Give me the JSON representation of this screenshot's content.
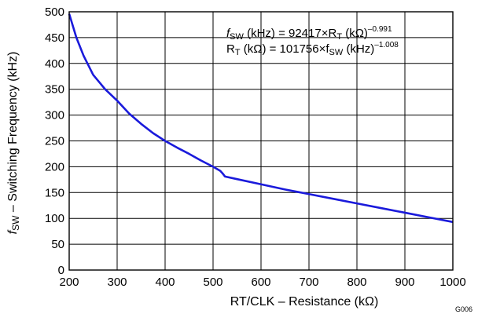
{
  "chart_data": {
    "type": "line",
    "xlabel": "RT/CLK – Resistance (kΩ)",
    "ylabel_symbol": "f",
    "ylabel_subscript": "SW",
    "ylabel_rest": " – Switching Frequency (kHz)",
    "xlim": [
      200,
      1000
    ],
    "ylim": [
      0,
      500
    ],
    "x_ticks": [
      200,
      300,
      400,
      500,
      600,
      700,
      800,
      900,
      1000
    ],
    "y_ticks": [
      0,
      50,
      100,
      150,
      200,
      250,
      300,
      350,
      400,
      450,
      500
    ],
    "grid": true,
    "figure_code": "G006",
    "annotation": {
      "line1": {
        "f": "f",
        "f_sub": "SW",
        "text_a": " (kHz) = 92417",
        "times": "×",
        "r": "R",
        "r_sub": "T",
        "text_b": " (kΩ)",
        "exp": "–0.991"
      },
      "line2": {
        "r": "R",
        "r_sub": "T",
        "text_a": " (kΩ) = 101756",
        "times": "×",
        "f": "f",
        "f_sub": "SW",
        "text_b": " (kHz)",
        "exp": "–1.008"
      }
    },
    "series": [
      {
        "color": "#1a1adb",
        "x": [
          200,
          215,
          230,
          250,
          275,
          300,
          325,
          350,
          375,
          400,
          425,
          450,
          475,
          500,
          515,
          520,
          525,
          550,
          600,
          650,
          700,
          750,
          800,
          850,
          900,
          950,
          1000
        ],
        "y": [
          496,
          450,
          415,
          378,
          350,
          328,
          303,
          283,
          265,
          250,
          237,
          225,
          212,
          200,
          192,
          187,
          181,
          176,
          166,
          156,
          147,
          138,
          129,
          120,
          111,
          102,
          93
        ]
      }
    ]
  }
}
